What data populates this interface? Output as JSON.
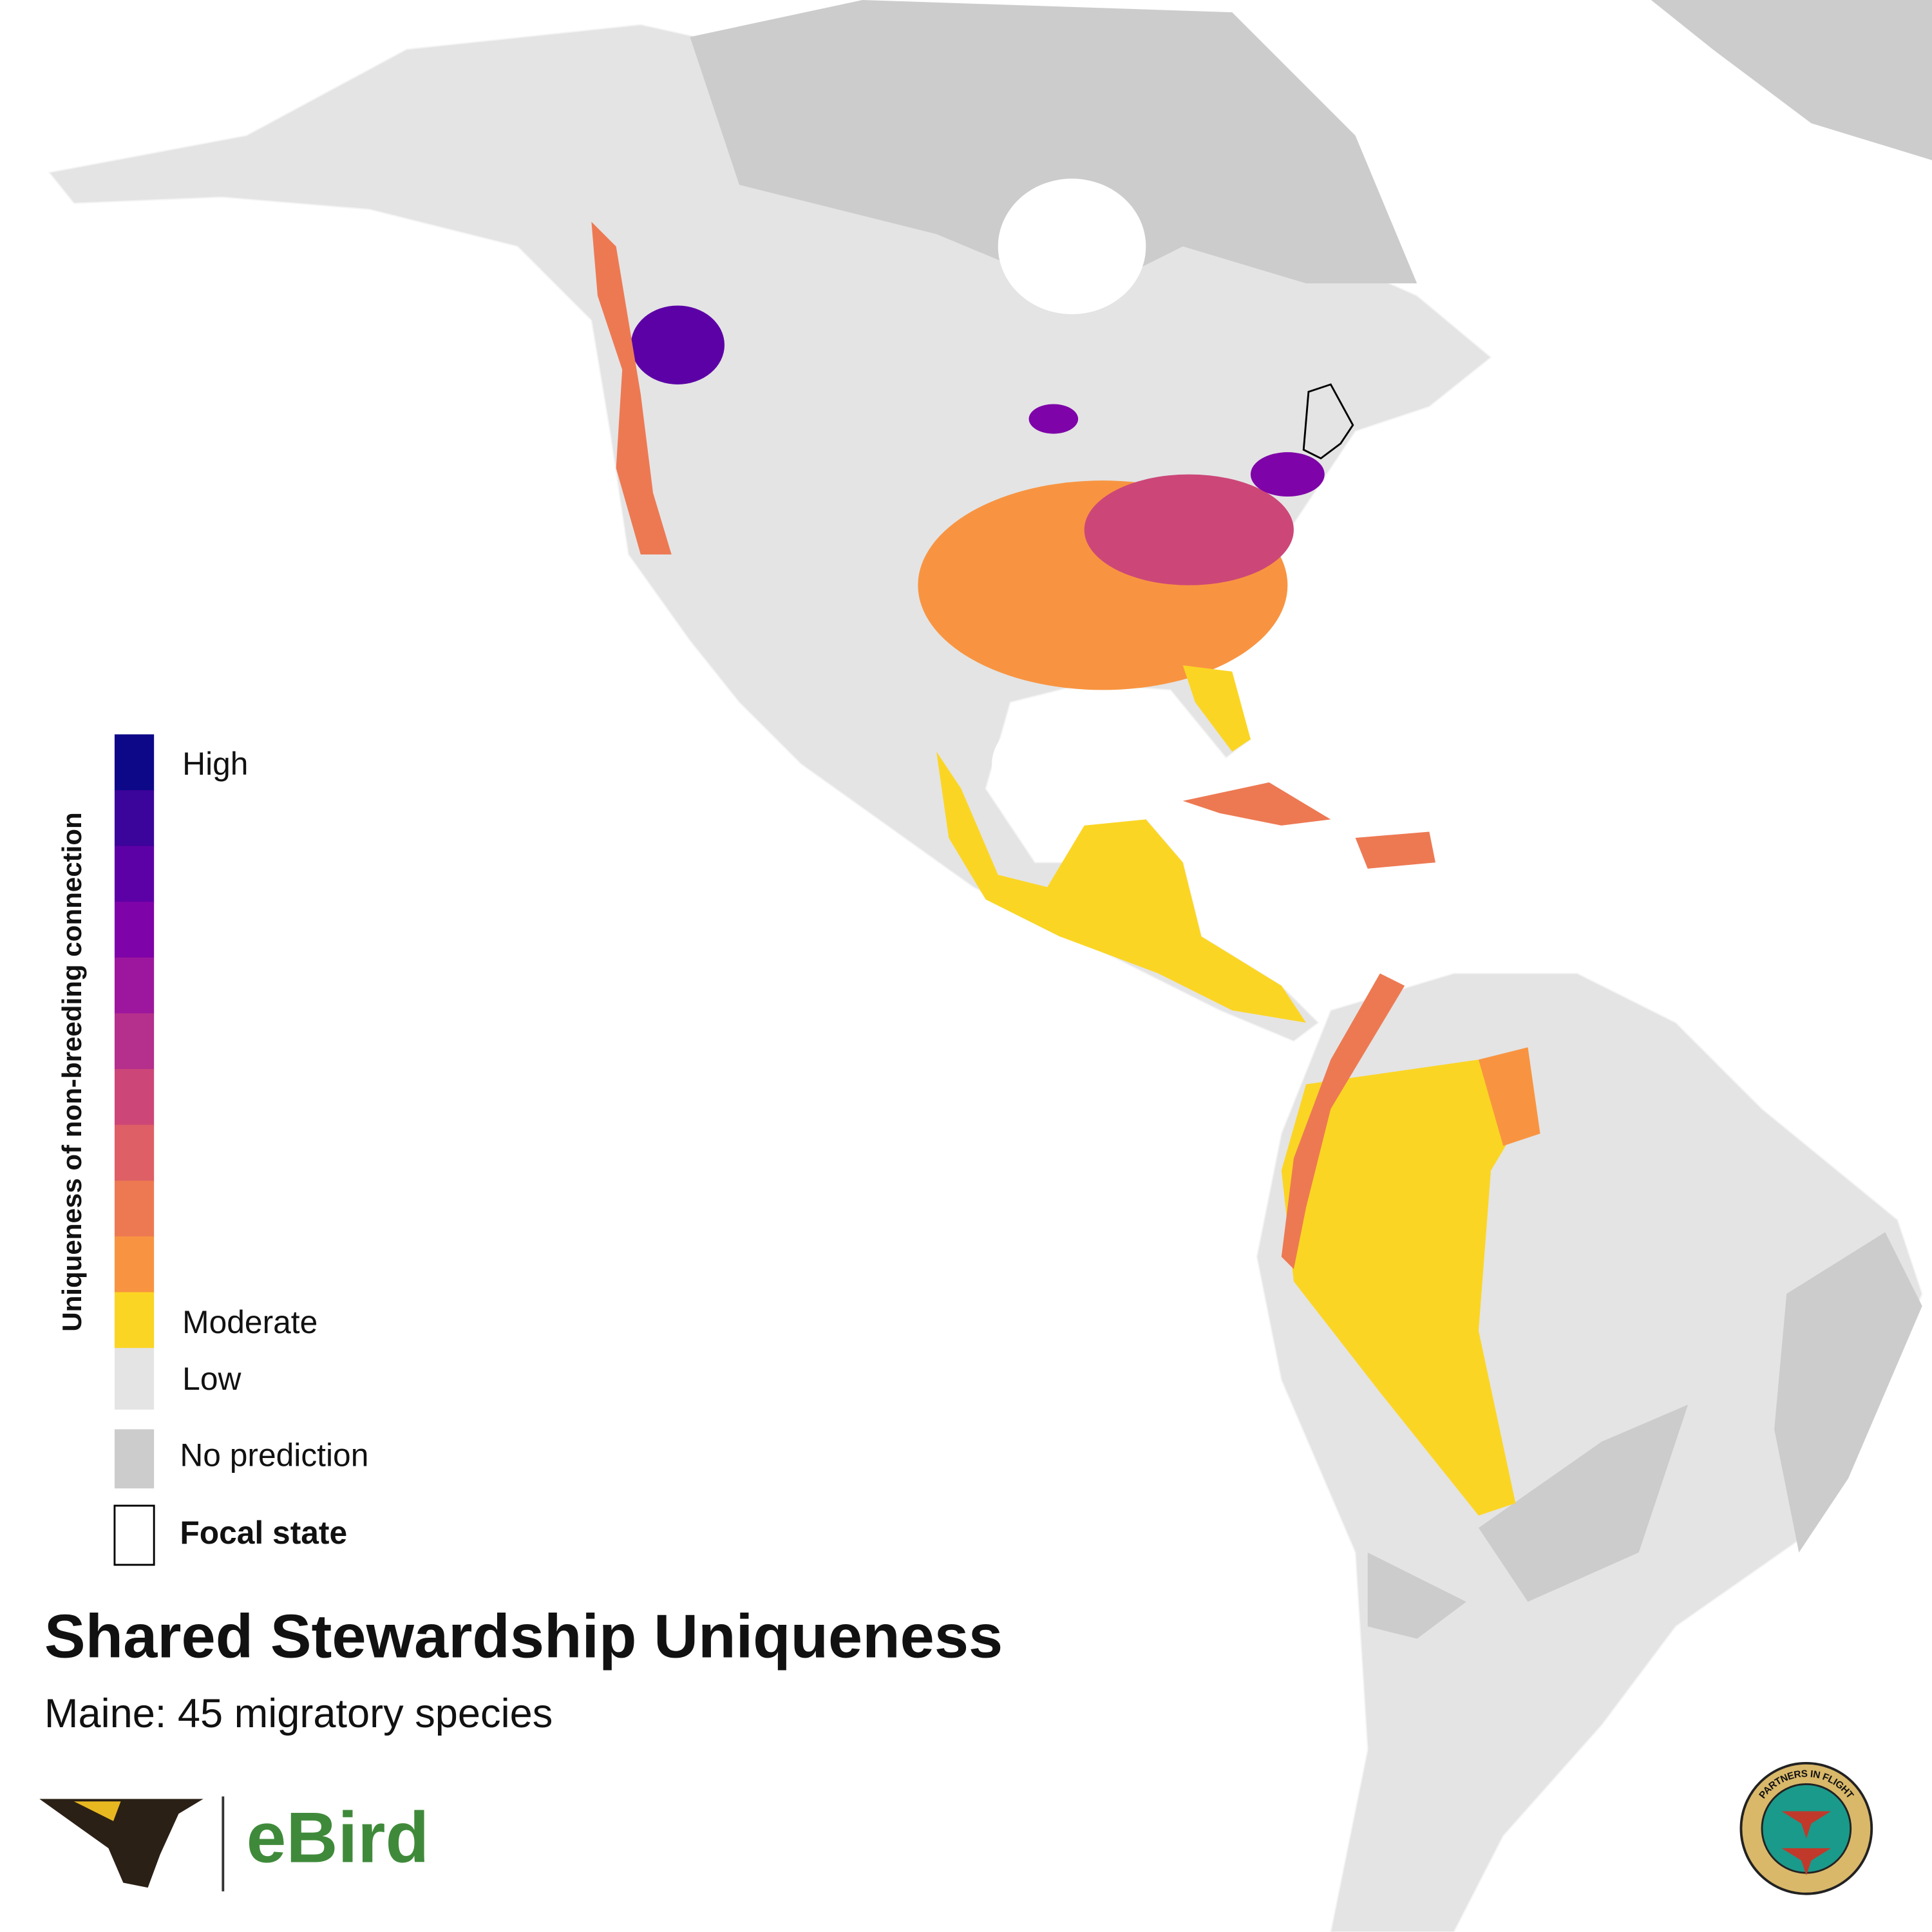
{
  "title": "Shared Stewardship Uniqueness",
  "subtitle": "Maine: 45 migratory species",
  "legend": {
    "title": "Uniqueness of non-breeding connection",
    "scale_colors": [
      "#0d0887",
      "#3b049a",
      "#5c01a6",
      "#7e03a8",
      "#9c179e",
      "#b52f8c",
      "#cc4778",
      "#de5f65",
      "#ed7953",
      "#f89441",
      "#fbd524"
    ],
    "high": "High",
    "moderate": "Moderate",
    "low": {
      "label": "Low",
      "color": "#e4e4e4"
    },
    "no_prediction": {
      "label": "No prediction",
      "color": "#cccccc"
    },
    "focal_state": {
      "label": "Focal state"
    }
  },
  "logos": {
    "ebird": "eBird",
    "seal": "PARTNERS IN FLIGHT"
  }
}
